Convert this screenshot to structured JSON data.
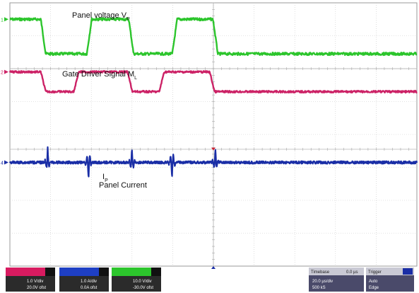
{
  "chart_data": {
    "type": "line",
    "title": "",
    "xlabel": "",
    "ylabel": "",
    "grid": true,
    "x_divisions": 10,
    "y_divisions": 8,
    "series": [
      {
        "name": "Panel voltage V_P",
        "color": "#2cc52c",
        "label_text": "Panel voltage",
        "label_sub": "V",
        "label_sub_index": "P",
        "marker": "1",
        "low": 0.5,
        "high": 1.55,
        "edges": [
          0.82,
          1.95,
          2.98,
          4.05,
          5.05
        ],
        "edge_dir": [
          "up",
          "down",
          "up",
          "down",
          "up"
        ],
        "noise": 0.04
      },
      {
        "name": "Gate Driver Signal M_L",
        "color": "#cc2266",
        "label_text": "Gate Driver Signal",
        "label_sub": "M",
        "label_sub_index": "L",
        "marker": "2",
        "low": 2.1,
        "high": 2.7,
        "edges": [
          0.82,
          1.63,
          2.95,
          3.73,
          4.97
        ],
        "edge_dir": [
          "up",
          "down",
          "up",
          "down",
          "up"
        ],
        "noise": 0.03
      },
      {
        "name": "Panel Current I_P",
        "color": "#1a2ea6",
        "label_text": "Panel Current",
        "label_sub": "I",
        "label_sub_index": "P",
        "marker": "4",
        "baseline": 4.85,
        "spikes_up": [
          0.93,
          3.0,
          5.05
        ],
        "spikes_down": [
          1.93,
          3.98
        ],
        "spike_up_amp": 0.45,
        "spike_down_amp": 0.55,
        "noise": 0.04
      }
    ]
  },
  "status_bar": {
    "channels": [
      {
        "id": "1",
        "color": "#d81b60",
        "line1": "1.0 V/div",
        "line2": "20.0V ofst"
      },
      {
        "id": "2",
        "color": "#1e3fc4",
        "line1": "1.0 A/div",
        "line2": "0.0A ofst"
      },
      {
        "id": "4",
        "color": "#2cc52c",
        "line1": "10.0 V/div",
        "line2": "-30.0V ofst"
      }
    ],
    "timebase": {
      "title": "Timebase",
      "value": "0.0 µs",
      "line1": "20.0 µs/div",
      "line2": "500 kS"
    },
    "trigger": {
      "title": "Trigger",
      "line1": "Auto",
      "line2": "Edge"
    }
  }
}
